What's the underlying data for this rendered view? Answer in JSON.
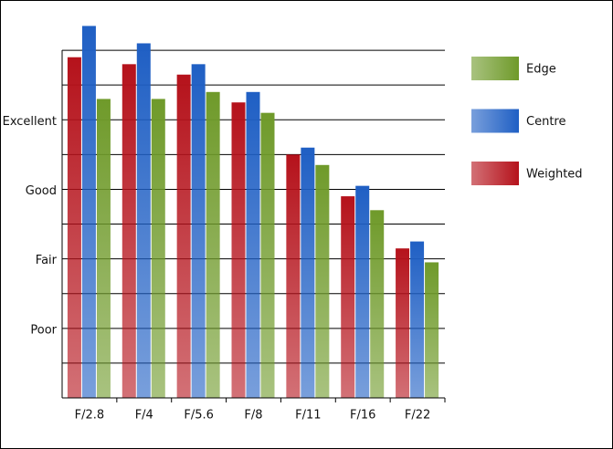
{
  "chart_data": {
    "type": "bar",
    "categories": [
      "F/2.8",
      "F/4",
      "F/5.6",
      "F/8",
      "F/11",
      "F/16",
      "F/22"
    ],
    "series": [
      {
        "name": "Weighted",
        "color": "#b5121b",
        "values": [
          9.8,
          9.6,
          9.3,
          8.5,
          7.0,
          5.8,
          4.3
        ]
      },
      {
        "name": "Centre",
        "color": "#1f5fc4",
        "values": [
          10.7,
          10.2,
          9.6,
          8.8,
          7.2,
          6.1,
          4.5
        ]
      },
      {
        "name": "Edge",
        "color": "#6f9a2a",
        "values": [
          8.6,
          8.6,
          8.8,
          8.2,
          6.7,
          5.4,
          3.9
        ]
      }
    ],
    "ylim": [
      0,
      11
    ],
    "yticks": [
      {
        "value": 2,
        "label": "Poor"
      },
      {
        "value": 4,
        "label": "Fair"
      },
      {
        "value": 6,
        "label": "Good"
      },
      {
        "value": 8,
        "label": "Excellent"
      }
    ],
    "minor_yticks": [
      1,
      3,
      5,
      7,
      9,
      10
    ],
    "grid": true,
    "legend": "right"
  }
}
